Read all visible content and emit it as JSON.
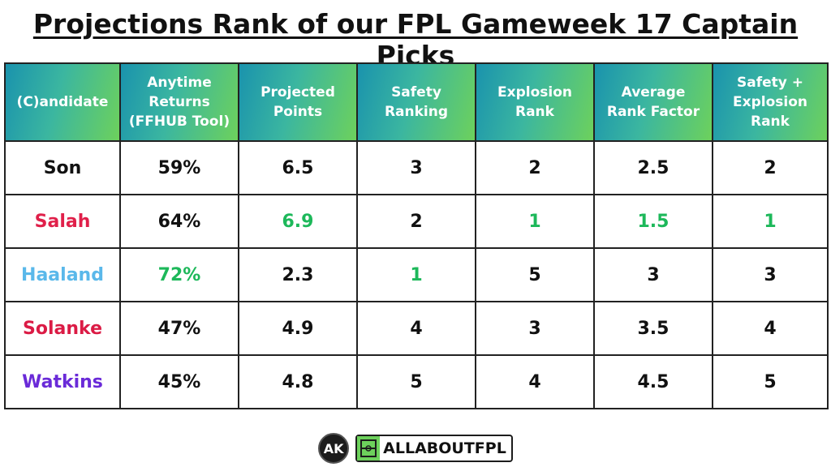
{
  "title": "Projections Rank of our FPL Gameweek 17 Captain Picks",
  "headers": [
    "(C)andidate",
    "Anytime\nReturns\n(FFHUB Tool)",
    "Projected\nPoints",
    "Safety\nRanking",
    "Explosion\nRank",
    "Average\nRank Factor",
    "Safety +\nExplosion\nRank"
  ],
  "colors": {
    "best_value": "#1db85a",
    "default_text": "#111111"
  },
  "rows": [
    {
      "name": "Son",
      "name_color": "#111111",
      "cells": [
        "59%",
        "6.5",
        "3",
        "2",
        "2.5",
        "2"
      ],
      "highlight": [
        false,
        false,
        false,
        false,
        false,
        false
      ]
    },
    {
      "name": "Salah",
      "name_color": "#e0204a",
      "cells": [
        "64%",
        "6.9",
        "2",
        "1",
        "1.5",
        "1"
      ],
      "highlight": [
        false,
        true,
        false,
        true,
        true,
        true
      ]
    },
    {
      "name": "Haaland",
      "name_color": "#5ab8ea",
      "cells": [
        "72%",
        "2.3",
        "1",
        "5",
        "3",
        "3"
      ],
      "highlight": [
        true,
        false,
        true,
        false,
        false,
        false
      ]
    },
    {
      "name": "Solanke",
      "name_color": "#db1b45",
      "cells": [
        "47%",
        "4.9",
        "4",
        "3",
        "3.5",
        "4"
      ],
      "highlight": [
        false,
        false,
        false,
        false,
        false,
        false
      ]
    },
    {
      "name": "Watkins",
      "name_color": "#6a2ad8",
      "cells": [
        "45%",
        "4.8",
        "5",
        "4",
        "4.5",
        "5"
      ],
      "highlight": [
        false,
        false,
        false,
        false,
        false,
        false
      ]
    }
  ],
  "footer": {
    "logo_text": "AK",
    "brand_text": "ALLABOUTFPL"
  }
}
